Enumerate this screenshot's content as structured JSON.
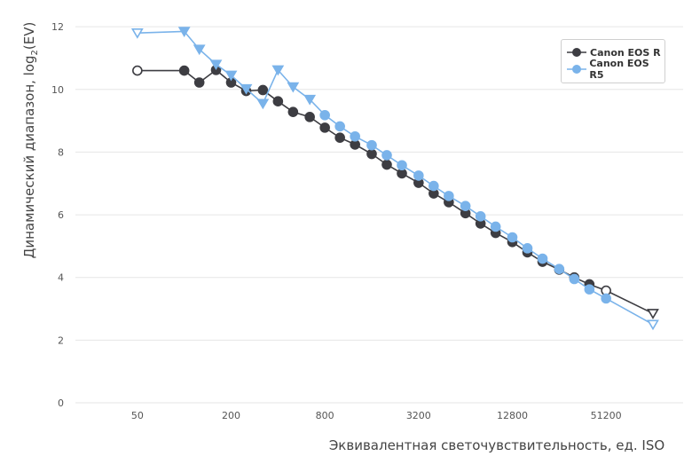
{
  "chart_data": {
    "type": "line",
    "title": "",
    "xlabel": "Эквивалентная светочувствительность, ед. ISO",
    "ylabel_main": "Динамический диапазон, log",
    "ylabel_sub": "2",
    "ylabel_suffix": "(EV)",
    "x_scale": "log2",
    "x_tick_labels": [
      "50",
      "200",
      "800",
      "3200",
      "12800",
      "51200"
    ],
    "x_tick_values": [
      50,
      200,
      800,
      3200,
      12800,
      51200
    ],
    "xlim": [
      20,
      160000
    ],
    "y_tick_values": [
      0,
      2,
      4,
      6,
      8,
      10,
      12
    ],
    "y_tick_labels": [
      "0",
      "2",
      "4",
      "6",
      "8",
      "10",
      "12"
    ],
    "ylim": [
      0,
      12.4
    ],
    "grid": "horizontal",
    "legend_position": "top-right",
    "series": [
      {
        "name": "Canon EOS R",
        "color": "#3d3d42",
        "marker": "circle",
        "points": [
          {
            "x": 50,
            "y": 10.6,
            "hollow": true
          },
          {
            "x": 100,
            "y": 10.6
          },
          {
            "x": 125,
            "y": 10.22
          },
          {
            "x": 160,
            "y": 10.62
          },
          {
            "x": 200,
            "y": 10.22
          },
          {
            "x": 250,
            "y": 9.95
          },
          {
            "x": 320,
            "y": 9.98
          },
          {
            "x": 400,
            "y": 9.62
          },
          {
            "x": 500,
            "y": 9.28
          },
          {
            "x": 640,
            "y": 9.12
          },
          {
            "x": 800,
            "y": 8.78
          },
          {
            "x": 1000,
            "y": 8.46
          },
          {
            "x": 1250,
            "y": 8.24
          },
          {
            "x": 1600,
            "y": 7.94
          },
          {
            "x": 2000,
            "y": 7.6
          },
          {
            "x": 2500,
            "y": 7.32
          },
          {
            "x": 3200,
            "y": 7.02
          },
          {
            "x": 4000,
            "y": 6.68
          },
          {
            "x": 5000,
            "y": 6.4
          },
          {
            "x": 6400,
            "y": 6.05
          },
          {
            "x": 8000,
            "y": 5.72
          },
          {
            "x": 10000,
            "y": 5.42
          },
          {
            "x": 12800,
            "y": 5.13
          },
          {
            "x": 16000,
            "y": 4.8
          },
          {
            "x": 20000,
            "y": 4.5
          },
          {
            "x": 25600,
            "y": 4.25
          },
          {
            "x": 32000,
            "y": 4.0
          },
          {
            "x": 40000,
            "y": 3.78
          },
          {
            "x": 51200,
            "y": 3.58,
            "hollow": true
          },
          {
            "x": 102400,
            "y": 2.85,
            "hollow": true,
            "marker": "triangle"
          }
        ]
      },
      {
        "name": "Canon EOS R5",
        "color": "#7ab3ea",
        "marker": "triangle",
        "points": [
          {
            "x": 50,
            "y": 11.8,
            "hollow": true
          },
          {
            "x": 100,
            "y": 11.85
          },
          {
            "x": 125,
            "y": 11.28
          },
          {
            "x": 160,
            "y": 10.8
          },
          {
            "x": 200,
            "y": 10.45
          },
          {
            "x": 250,
            "y": 10.02
          },
          {
            "x": 320,
            "y": 9.55
          },
          {
            "x": 400,
            "y": 10.62
          },
          {
            "x": 500,
            "y": 10.08
          },
          {
            "x": 640,
            "y": 9.68
          },
          {
            "x": 800,
            "y": 9.18,
            "marker": "circle"
          },
          {
            "x": 1000,
            "y": 8.82,
            "marker": "circle"
          },
          {
            "x": 1250,
            "y": 8.5,
            "marker": "circle"
          },
          {
            "x": 1600,
            "y": 8.22,
            "marker": "circle"
          },
          {
            "x": 2000,
            "y": 7.9,
            "marker": "circle"
          },
          {
            "x": 2500,
            "y": 7.58,
            "marker": "circle"
          },
          {
            "x": 3200,
            "y": 7.25,
            "marker": "circle"
          },
          {
            "x": 4000,
            "y": 6.92,
            "marker": "circle"
          },
          {
            "x": 5000,
            "y": 6.6,
            "marker": "circle"
          },
          {
            "x": 6400,
            "y": 6.28,
            "marker": "circle"
          },
          {
            "x": 8000,
            "y": 5.95,
            "marker": "circle"
          },
          {
            "x": 10000,
            "y": 5.62,
            "marker": "circle"
          },
          {
            "x": 12800,
            "y": 5.28,
            "marker": "circle"
          },
          {
            "x": 16000,
            "y": 4.93,
            "marker": "circle"
          },
          {
            "x": 20000,
            "y": 4.6,
            "marker": "circle"
          },
          {
            "x": 25600,
            "y": 4.27,
            "marker": "circle"
          },
          {
            "x": 32000,
            "y": 3.95,
            "marker": "circle"
          },
          {
            "x": 40000,
            "y": 3.62,
            "marker": "circle"
          },
          {
            "x": 51200,
            "y": 3.33,
            "marker": "circle"
          },
          {
            "x": 102400,
            "y": 2.5,
            "hollow": true,
            "marker": "triangle"
          }
        ]
      }
    ]
  }
}
